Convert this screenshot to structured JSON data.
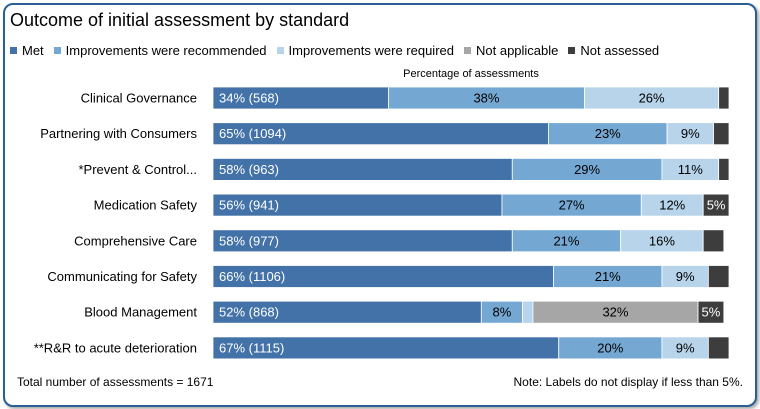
{
  "chart_data": {
    "type": "bar",
    "orientation": "horizontal",
    "stacked": true,
    "title": "Outcome of initial assessment by standard",
    "xlabel": "Percentage of assessments",
    "xlim": [
      0,
      100
    ],
    "legend_position": "top",
    "categories": [
      "Clinical Governance",
      "Partnering with Consumers",
      "*Prevent & Control...",
      "Medication Safety",
      "Comprehensive Care",
      "Communicating for Safety",
      "Blood Management",
      "**R&R to acute deterioration"
    ],
    "series": [
      {
        "name": "Met",
        "color": "#4272a8",
        "values": [
          34,
          65,
          58,
          56,
          58,
          66,
          52,
          67
        ],
        "labels": [
          "34% (568)",
          "65% (1094)",
          "58% (963)",
          "56% (941)",
          "58% (977)",
          "66% (1106)",
          "52% (868)",
          "67% (1115)"
        ]
      },
      {
        "name": "Improvements were recommended",
        "color": "#74a8d3",
        "values": [
          38,
          23,
          29,
          27,
          21,
          21,
          8,
          20
        ],
        "labels": [
          "38%",
          "23%",
          "29%",
          "27%",
          "21%",
          "21%",
          "8%",
          "20%"
        ]
      },
      {
        "name": "Improvements were required",
        "color": "#b7d4ea",
        "values": [
          26,
          9,
          11,
          12,
          16,
          9,
          2,
          9
        ],
        "labels": [
          "26%",
          "9%",
          "11%",
          "12%",
          "16%",
          "9%",
          "",
          "9%"
        ]
      },
      {
        "name": "Not applicable",
        "color": "#a6a6a6",
        "values": [
          0,
          0,
          0,
          0,
          0,
          0,
          32,
          0
        ],
        "labels": [
          "",
          "",
          "",
          "",
          "",
          "",
          "32%",
          ""
        ]
      },
      {
        "name": "Not assessed",
        "color": "#3d3d3d",
        "values": [
          2,
          3,
          2,
          5,
          4,
          4,
          5,
          4
        ],
        "labels": [
          "",
          "",
          "",
          "5%",
          "",
          "",
          "5%",
          ""
        ]
      }
    ]
  },
  "footer": {
    "total": "Total number of assessments = 1671",
    "note": "Note: Labels do not display if less than 5%."
  }
}
